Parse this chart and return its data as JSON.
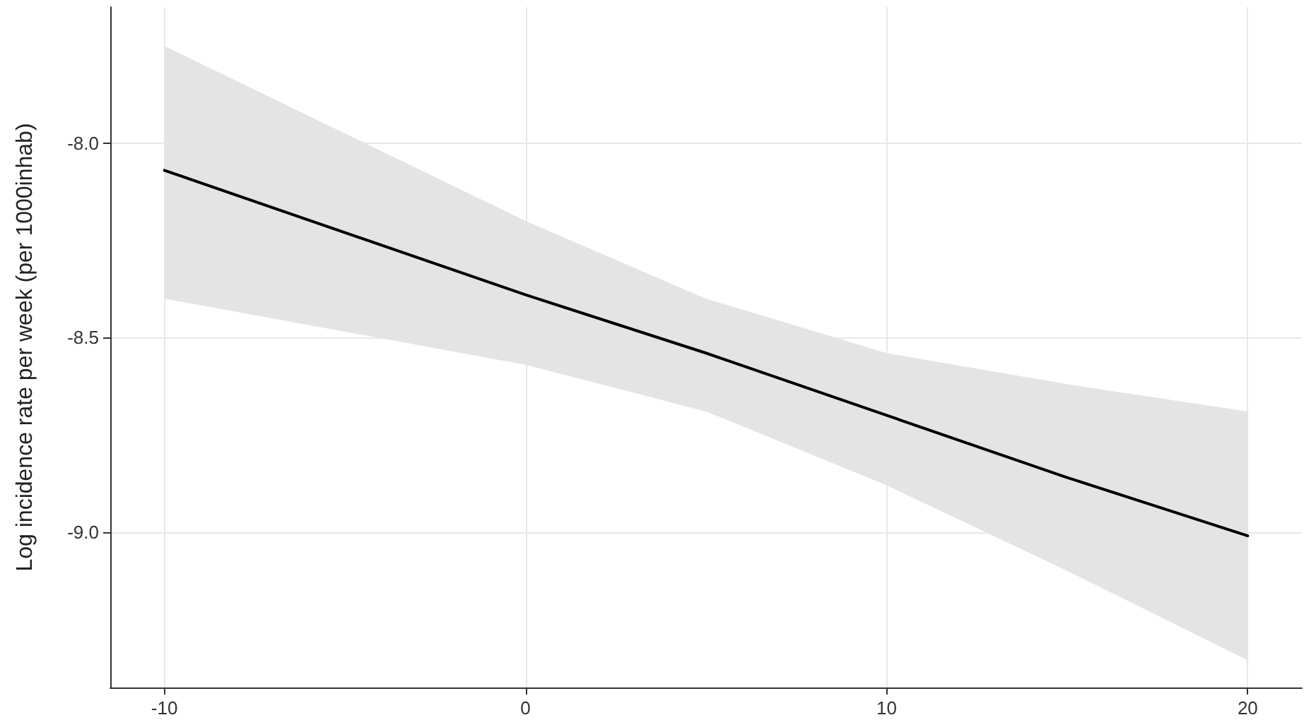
{
  "chart_data": {
    "type": "line",
    "ylabel": "Log incidence rate per week (per 1000inhab)",
    "x": [
      -10,
      0,
      5,
      10,
      15,
      20
    ],
    "series": [
      {
        "color": "#000000",
        "values": [
          -8.07,
          -8.39,
          -8.54,
          -8.7,
          -8.86,
          -9.01
        ],
        "lower": [
          -8.4,
          -8.57,
          -8.69,
          -8.88,
          -9.1,
          -9.33
        ],
        "upper": [
          -7.75,
          -8.2,
          -8.4,
          -8.54,
          -8.62,
          -8.69
        ]
      }
    ],
    "xlim": [
      -11.5,
      21.5
    ],
    "xticks": [
      -10,
      0,
      10,
      20
    ],
    "ylim": [
      -9.4,
      -7.65
    ],
    "yticks": [
      {
        "value": -9,
        "label": "-9.0"
      },
      {
        "value": -8.5,
        "label": "-8.5"
      },
      {
        "value": -8,
        "label": "-8.0"
      }
    ],
    "grid": true,
    "marker": "none",
    "line_style": "solid"
  }
}
